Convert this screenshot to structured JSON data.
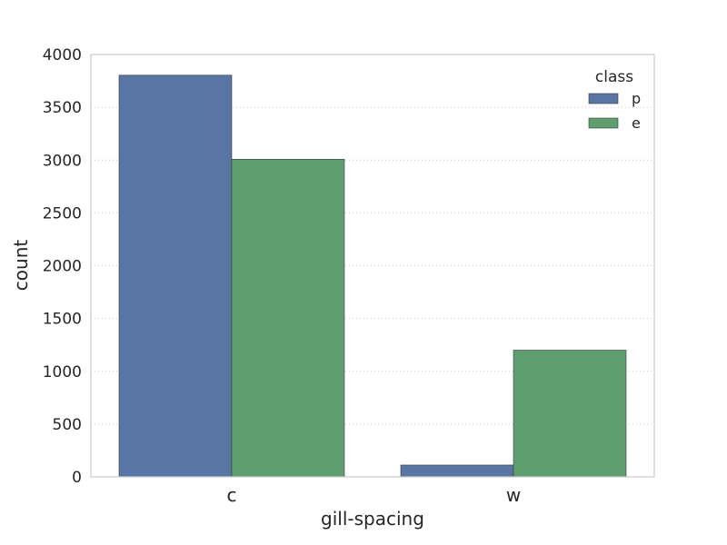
{
  "chart_data": {
    "type": "bar",
    "title": "",
    "xlabel": "gill-spacing",
    "ylabel": "count",
    "categories": [
      "c",
      "w"
    ],
    "series": [
      {
        "name": "p",
        "values": [
          3804,
          112
        ],
        "color": "#5975a4"
      },
      {
        "name": "e",
        "values": [
          3008,
          1200
        ],
        "color": "#5f9e6e"
      }
    ],
    "ylim": [
      0,
      4000
    ],
    "yticks": [
      0,
      500,
      1000,
      1500,
      2000,
      2500,
      3000,
      3500,
      4000
    ],
    "grid": true,
    "legend": {
      "title": "class",
      "placement": "top-right"
    }
  }
}
